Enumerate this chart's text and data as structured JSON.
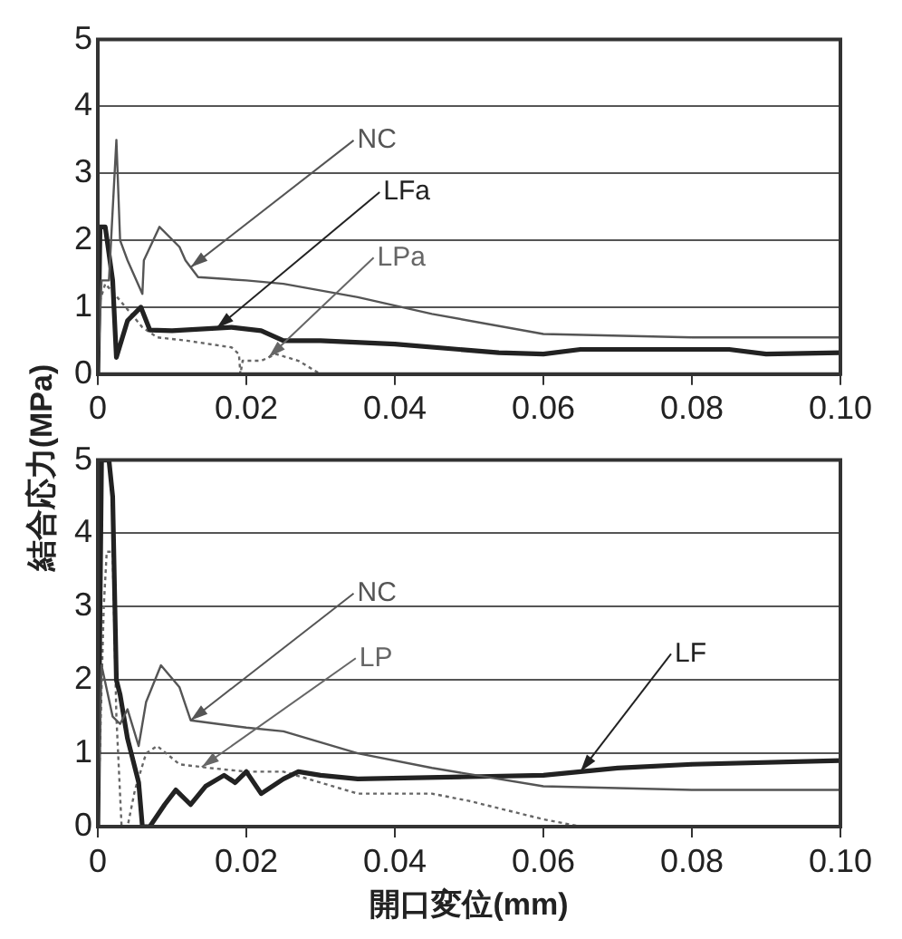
{
  "chart_data": [
    {
      "type": "line",
      "ylabel": "結合応力(MPa)",
      "xlim": [
        0,
        0.1
      ],
      "xticks": [
        0,
        0.02,
        0.04,
        0.06,
        0.08,
        {
          "value": 0.1,
          "label": "0.10"
        }
      ],
      "ylim": [
        0,
        5
      ],
      "yticks": [
        0,
        1,
        2,
        3,
        4,
        5
      ],
      "grid": "y",
      "marker": "none",
      "series": [
        {
          "name": "NC",
          "color": "#555555",
          "line_style": "solid",
          "x": [
            0,
            0.0005,
            0.0015,
            0.0025,
            0.003,
            0.004,
            0.006,
            0.0062,
            0.0083,
            0.011,
            0.0118,
            0.0135,
            0.02,
            0.025,
            0.035,
            0.045,
            0.06,
            0.08,
            0.1
          ],
          "values": [
            0,
            1.4,
            1.4,
            3.5,
            2.0,
            1.7,
            1.2,
            1.7,
            2.2,
            1.9,
            1.7,
            1.45,
            1.4,
            1.35,
            1.15,
            0.9,
            0.6,
            0.55,
            0.55
          ]
        },
        {
          "name": "LFa",
          "color": "#222222",
          "line_style": "solid",
          "x": [
            0,
            0.0003,
            0.001,
            0.002,
            0.0025,
            0.004,
            0.0058,
            0.007,
            0.01,
            0.018,
            0.022,
            0.025,
            0.03,
            0.04,
            0.054,
            0.06,
            0.065,
            0.085,
            0.09,
            0.1
          ],
          "values": [
            0,
            2.2,
            2.2,
            1.4,
            0.25,
            0.8,
            1.0,
            0.66,
            0.65,
            0.7,
            0.65,
            0.5,
            0.5,
            0.45,
            0.32,
            0.3,
            0.37,
            0.37,
            0.3,
            0.32
          ]
        },
        {
          "name": "LPa",
          "color": "#666666",
          "line_style": "dotted",
          "x": [
            0,
            0.0003,
            0.001,
            0.003,
            0.006,
            0.008,
            0.012,
            0.018,
            0.019,
            0.0192,
            0.0195,
            0.022,
            0.024,
            0.027,
            0.03
          ],
          "values": [
            0,
            1.1,
            1.35,
            1.1,
            0.7,
            0.55,
            0.5,
            0.4,
            0.3,
            0,
            0.2,
            0.2,
            0.3,
            0.2,
            0
          ]
        }
      ]
    },
    {
      "type": "line",
      "xlabel": "開口変位(mm)",
      "xlim": [
        0,
        0.1
      ],
      "xticks": [
        0,
        0.02,
        0.04,
        0.06,
        0.08,
        {
          "value": 0.1,
          "label": "0.10"
        }
      ],
      "ylim": [
        0,
        5
      ],
      "yticks": [
        0,
        1,
        2,
        3,
        4,
        5
      ],
      "grid": "y",
      "marker": "none",
      "series": [
        {
          "name": "NC",
          "color": "#555555",
          "line_style": "solid",
          "x": [
            0,
            0.0005,
            0.002,
            0.003,
            0.004,
            0.0055,
            0.0065,
            0.0085,
            0.011,
            0.0125,
            0.02,
            0.025,
            0.035,
            0.045,
            0.06,
            0.08,
            0.1
          ],
          "values": [
            0,
            2.2,
            1.5,
            1.4,
            1.6,
            1.1,
            1.7,
            2.2,
            1.9,
            1.45,
            1.35,
            1.3,
            1.0,
            0.8,
            0.55,
            0.5,
            0.5
          ]
        },
        {
          "name": "LF",
          "color": "#222222",
          "line_style": "solid",
          "x": [
            0,
            0.0005,
            0.0015,
            0.002,
            0.0025,
            0.003,
            0.004,
            0.0055,
            0.006,
            0.007,
            0.009,
            0.0105,
            0.0125,
            0.0145,
            0.017,
            0.0185,
            0.02,
            0.022,
            0.025,
            0.027,
            0.03,
            0.035,
            0.05,
            0.06,
            0.07,
            0.08,
            0.1
          ],
          "values": [
            0,
            5.0,
            5.0,
            4.5,
            2.0,
            1.8,
            1.2,
            0.6,
            0,
            0,
            0.3,
            0.5,
            0.3,
            0.55,
            0.7,
            0.6,
            0.75,
            0.45,
            0.65,
            0.75,
            0.7,
            0.65,
            0.68,
            0.7,
            0.8,
            0.85,
            0.9
          ]
        },
        {
          "name": "LP",
          "color": "#666666",
          "line_style": "dotted",
          "x": [
            0,
            0.0008,
            0.0012,
            0.002,
            0.0025,
            0.0032,
            0.004,
            0.005,
            0.0065,
            0.008,
            0.011,
            0.015,
            0.02,
            0.025,
            0.03,
            0.035,
            0.045,
            0.05,
            0.06,
            0.065
          ],
          "values": [
            0,
            3.0,
            3.75,
            3.75,
            1.5,
            0,
            0,
            0.5,
            1.0,
            1.1,
            0.85,
            0.8,
            0.75,
            0.75,
            0.6,
            0.45,
            0.45,
            0.35,
            0.1,
            0
          ]
        }
      ]
    }
  ]
}
